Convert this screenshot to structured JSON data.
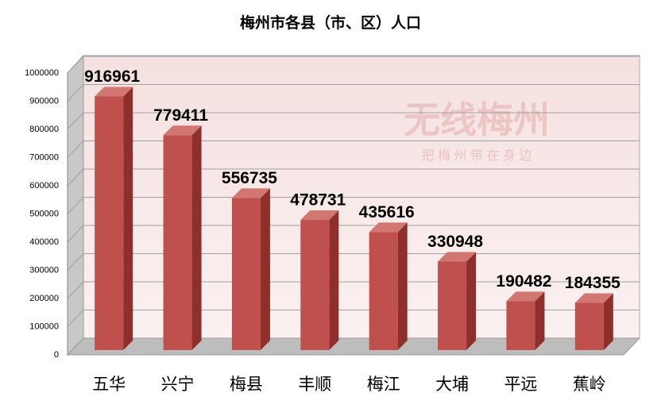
{
  "chart_data": {
    "type": "bar3d",
    "title": "梅州市各县（市、区）人口",
    "categories": [
      "五华",
      "兴宁",
      "梅县",
      "丰顺",
      "梅江",
      "大埔",
      "平远",
      "蕉岭"
    ],
    "values": [
      916961,
      779411,
      556735,
      478731,
      435616,
      330948,
      190482,
      184355
    ],
    "color": "#c0504d",
    "ylim": [
      0,
      1000000
    ],
    "yticks": [
      0,
      100000,
      200000,
      300000,
      400000,
      500000,
      600000,
      700000,
      800000,
      900000,
      1000000
    ],
    "grid": true,
    "watermark": {
      "title": "无线梅州",
      "subtitle": "把 梅 州 带 在 身 边"
    }
  }
}
